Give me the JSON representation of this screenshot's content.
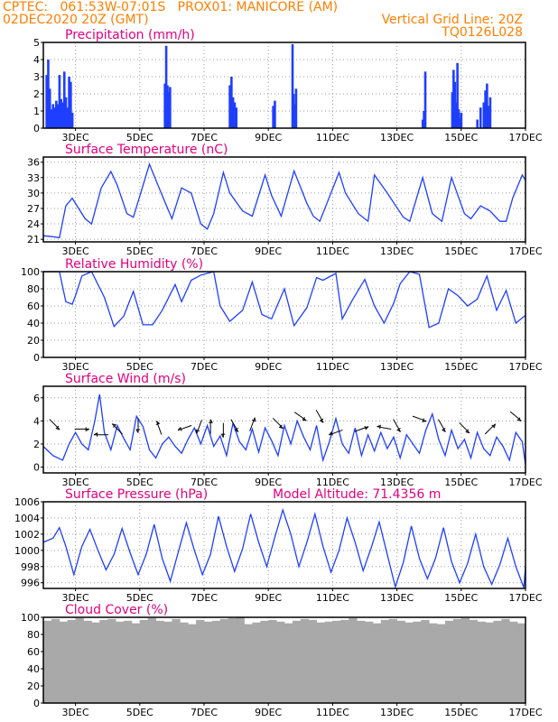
{
  "header": {
    "line1_left": "CPTEC:   061:53W-07:01S   PROX01: MANICORE (AM)",
    "line2_left": "02DEC2020 20Z (GMT)",
    "line2_right": "Vertical Grid Line: 20Z",
    "line3_right": "TQ0126L028"
  },
  "colors": {
    "header": "#ff7f00",
    "titles": "#e0007f",
    "series": "#1f3fff",
    "cloud": "#a9a9a9",
    "grid": "#9a9a9a",
    "arrows": "#000000"
  },
  "x_tick_labels": [
    "3DEC",
    "5DEC",
    "7DEC",
    "9DEC",
    "11DEC",
    "13DEC",
    "15DEC",
    "17DEC"
  ],
  "chart_data": [
    {
      "type": "bar",
      "title": "Precipitation (mm/h)",
      "ylim": [
        0,
        5
      ],
      "yticks": [
        0,
        1,
        2,
        3,
        4,
        5
      ],
      "xlim_days": [
        2.0,
        17.0
      ],
      "x": [
        2.1,
        2.15,
        2.2,
        2.25,
        2.3,
        2.35,
        2.4,
        2.45,
        2.5,
        2.55,
        2.6,
        2.65,
        2.7,
        2.75,
        2.8,
        2.85,
        2.9,
        5.78,
        5.82,
        5.86,
        5.9,
        5.94,
        7.8,
        7.85,
        7.9,
        7.95,
        8.0,
        9.15,
        9.2,
        9.75,
        9.78,
        9.82,
        9.86,
        13.8,
        13.84,
        13.88,
        14.72,
        14.76,
        14.8,
        14.84,
        14.88,
        14.92,
        14.96,
        15.0,
        15.5,
        15.6,
        15.7,
        15.75,
        15.8,
        15.85,
        15.9
      ],
      "values": [
        3.1,
        4.0,
        2.3,
        1.1,
        1.4,
        1.2,
        1.6,
        1.4,
        3.1,
        1.7,
        1.5,
        3.3,
        1.8,
        1.2,
        3.0,
        2.7,
        0.9,
        2.6,
        4.8,
        2.5,
        2.1,
        2.4,
        2.5,
        3.0,
        1.8,
        1.5,
        1.2,
        1.3,
        1.6,
        4.9,
        2.0,
        1.4,
        2.3,
        0.5,
        1.0,
        3.3,
        2.1,
        3.4,
        2.7,
        1.5,
        3.8,
        1.1,
        0.6,
        0.9,
        0.5,
        1.2,
        1.5,
        2.2,
        2.6,
        1.3,
        1.8
      ]
    },
    {
      "type": "line",
      "title": "Surface Temperature (nC)",
      "ylim": [
        20.5,
        37
      ],
      "yticks": [
        21,
        24,
        27,
        30,
        33,
        36
      ],
      "x": [
        2.0,
        2.3,
        2.5,
        2.7,
        2.9,
        3.3,
        3.5,
        3.8,
        4.1,
        4.3,
        4.6,
        4.8,
        5.3,
        5.6,
        6.0,
        6.3,
        6.6,
        6.9,
        7.1,
        7.3,
        7.6,
        7.8,
        8.2,
        8.5,
        8.9,
        9.1,
        9.4,
        9.8,
        10.2,
        10.4,
        10.6,
        11.2,
        11.4,
        11.8,
        12.1,
        12.3,
        12.7,
        13.2,
        13.4,
        13.8,
        14.1,
        14.4,
        14.7,
        15.1,
        15.3,
        15.6,
        15.9,
        16.2,
        16.4,
        16.6,
        16.9,
        17.0
      ],
      "values": [
        21.7,
        21.5,
        21.3,
        27.5,
        29.0,
        25.0,
        24.0,
        31.0,
        34.2,
        31.5,
        26.0,
        25.3,
        35.6,
        31.0,
        25.0,
        31.0,
        30.0,
        24.0,
        23.0,
        26.0,
        34.0,
        30.0,
        26.5,
        25.5,
        33.5,
        29.5,
        25.5,
        34.3,
        28.0,
        25.5,
        24.5,
        34.0,
        30.0,
        26.0,
        24.5,
        33.5,
        30.0,
        25.3,
        24.5,
        33.0,
        26.0,
        24.5,
        33.0,
        26.0,
        25.0,
        27.5,
        26.5,
        24.5,
        24.5,
        29.0,
        33.5,
        32.5
      ]
    },
    {
      "type": "line",
      "title": "Relative Humidity (%)",
      "ylim": [
        0,
        100
      ],
      "yticks": [
        0,
        20,
        40,
        60,
        80,
        100
      ],
      "x": [
        2.0,
        2.5,
        2.7,
        2.9,
        3.0,
        3.2,
        3.5,
        3.9,
        4.2,
        4.5,
        4.8,
        5.1,
        5.4,
        5.7,
        6.1,
        6.3,
        6.6,
        6.9,
        7.3,
        7.5,
        7.8,
        8.2,
        8.5,
        8.8,
        9.1,
        9.5,
        9.8,
        10.2,
        10.5,
        10.7,
        11.1,
        11.3,
        11.6,
        12.0,
        12.3,
        12.6,
        12.9,
        13.1,
        13.4,
        13.7,
        14.0,
        14.3,
        14.6,
        14.9,
        15.2,
        15.5,
        15.8,
        16.1,
        16.4,
        16.7,
        17.0
      ],
      "values": [
        100,
        100,
        65,
        62,
        72,
        95,
        100,
        70,
        36,
        48,
        77,
        38,
        38,
        55,
        85,
        65,
        90,
        96,
        100,
        60,
        42,
        55,
        88,
        50,
        45,
        80,
        37,
        58,
        93,
        90,
        98,
        45,
        66,
        91,
        60,
        40,
        63,
        86,
        100,
        97,
        35,
        40,
        80,
        72,
        60,
        68,
        95,
        55,
        78,
        40,
        49
      ]
    },
    {
      "type": "line",
      "title": "Surface Wind (m/s)",
      "ylim": [
        -0.5,
        7
      ],
      "yticks": [
        0,
        2,
        4,
        6
      ],
      "x": [
        2.0,
        2.3,
        2.6,
        2.8,
        3.0,
        3.2,
        3.4,
        3.6,
        3.75,
        3.9,
        4.1,
        4.3,
        4.5,
        4.7,
        4.9,
        5.1,
        5.3,
        5.5,
        5.7,
        5.9,
        6.1,
        6.3,
        6.5,
        6.7,
        6.9,
        7.1,
        7.3,
        7.5,
        7.7,
        7.9,
        8.1,
        8.3,
        8.5,
        8.7,
        8.9,
        9.1,
        9.3,
        9.5,
        9.7,
        9.9,
        10.1,
        10.3,
        10.5,
        10.7,
        10.9,
        11.1,
        11.3,
        11.5,
        11.7,
        11.9,
        12.1,
        12.3,
        12.5,
        12.7,
        12.9,
        13.1,
        13.3,
        13.5,
        13.7,
        13.9,
        14.1,
        14.3,
        14.5,
        14.7,
        14.9,
        15.1,
        15.3,
        15.5,
        15.7,
        15.9,
        16.1,
        16.3,
        16.5,
        16.7,
        16.9,
        17.0
      ],
      "values": [
        1.8,
        1.0,
        0.6,
        2.0,
        3.0,
        2.0,
        1.5,
        4.0,
        6.3,
        3.0,
        1.5,
        3.6,
        2.5,
        1.5,
        4.4,
        3.5,
        1.5,
        0.8,
        2.0,
        2.6,
        1.8,
        1.2,
        2.4,
        3.4,
        2.0,
        3.6,
        1.8,
        2.7,
        1.0,
        3.8,
        2.2,
        1.5,
        3.3,
        1.3,
        3.4,
        2.3,
        1.0,
        3.6,
        2.0,
        4.0,
        2.6,
        1.5,
        3.6,
        0.6,
        2.2,
        4.2,
        2.0,
        1.2,
        3.4,
        1.0,
        2.8,
        1.4,
        3.0,
        1.6,
        2.6,
        0.8,
        2.8,
        2.0,
        1.2,
        3.2,
        4.6,
        2.4,
        1.0,
        3.2,
        1.6,
        2.4,
        0.8,
        3.0,
        1.6,
        1.0,
        2.6,
        1.8,
        0.6,
        3.0,
        2.2,
        0.2
      ],
      "arrows": [
        {
          "x": 2.35,
          "y": 3.7,
          "dir_deg": 315
        },
        {
          "x": 3.2,
          "y": 3.3,
          "dir_deg": 0
        },
        {
          "x": 3.8,
          "y": 2.8,
          "dir_deg": 180
        },
        {
          "x": 4.3,
          "y": 3.3,
          "dir_deg": 135
        },
        {
          "x": 4.95,
          "y": 3.6,
          "dir_deg": 270
        },
        {
          "x": 5.6,
          "y": 3.4,
          "dir_deg": 110
        },
        {
          "x": 6.4,
          "y": 3.4,
          "dir_deg": 200
        },
        {
          "x": 6.85,
          "y": 3.5,
          "dir_deg": 250
        },
        {
          "x": 7.2,
          "y": 3.5,
          "dir_deg": 90
        },
        {
          "x": 7.6,
          "y": 3.2,
          "dir_deg": 270
        },
        {
          "x": 7.95,
          "y": 3.6,
          "dir_deg": 300
        },
        {
          "x": 8.5,
          "y": 3.7,
          "dir_deg": 70
        },
        {
          "x": 9.3,
          "y": 3.8,
          "dir_deg": 315
        },
        {
          "x": 10.0,
          "y": 4.4,
          "dir_deg": 325
        },
        {
          "x": 10.6,
          "y": 4.4,
          "dir_deg": 300
        },
        {
          "x": 11.1,
          "y": 3.0,
          "dir_deg": 200
        },
        {
          "x": 11.9,
          "y": 3.3,
          "dir_deg": 20
        },
        {
          "x": 12.6,
          "y": 3.4,
          "dir_deg": 170
        },
        {
          "x": 13.0,
          "y": 3.6,
          "dir_deg": 300
        },
        {
          "x": 13.7,
          "y": 4.2,
          "dir_deg": 340
        },
        {
          "x": 14.4,
          "y": 3.6,
          "dir_deg": 300
        },
        {
          "x": 15.1,
          "y": 3.4,
          "dir_deg": 315
        },
        {
          "x": 15.9,
          "y": 3.3,
          "dir_deg": 45
        },
        {
          "x": 16.7,
          "y": 4.4,
          "dir_deg": 320
        }
      ]
    },
    {
      "type": "line",
      "title": "Surface Pressure (hPa)",
      "annotation": "Model Altitude: 71.4356 m",
      "ylim": [
        995.3,
        1006
      ],
      "yticks": [
        996,
        998,
        1000,
        1002,
        1004,
        1006
      ],
      "x": [
        2.0,
        2.3,
        2.5,
        2.7,
        2.95,
        3.2,
        3.45,
        3.7,
        3.95,
        4.2,
        4.45,
        4.7,
        4.95,
        5.2,
        5.45,
        5.7,
        5.95,
        6.2,
        6.45,
        6.7,
        6.95,
        7.2,
        7.45,
        7.7,
        7.95,
        8.2,
        8.45,
        8.7,
        8.95,
        9.2,
        9.45,
        9.7,
        9.95,
        10.2,
        10.45,
        10.7,
        10.95,
        11.2,
        11.45,
        11.7,
        11.95,
        12.2,
        12.45,
        12.7,
        12.95,
        13.2,
        13.45,
        13.7,
        13.95,
        14.2,
        14.45,
        14.7,
        14.95,
        15.2,
        15.45,
        15.7,
        15.95,
        16.2,
        16.45,
        16.7,
        16.95,
        17.0
      ],
      "values": [
        1001.0,
        1001.5,
        1002.8,
        1000.5,
        997.0,
        1000.5,
        1002.6,
        1000.0,
        997.6,
        999.5,
        1002.7,
        999.7,
        997.0,
        999.5,
        1003.2,
        999.0,
        996.2,
        999.8,
        1003.4,
        1000.0,
        997.0,
        999.5,
        1004.2,
        1000.5,
        997.4,
        1000.2,
        1004.5,
        1001.0,
        998.0,
        1001.6,
        1005.0,
        1002.0,
        998.0,
        1001.0,
        1004.5,
        1000.5,
        997.3,
        1000.0,
        1004.0,
        1001.0,
        997.5,
        1000.3,
        1003.5,
        999.5,
        995.5,
        998.5,
        1003.0,
        999.0,
        996.5,
        999.0,
        1002.8,
        998.6,
        996.0,
        998.4,
        1002.0,
        998.0,
        995.8,
        998.2,
        1001.5,
        998.0,
        995.4,
        998.0
      ]
    },
    {
      "type": "bar",
      "title": "Cloud Cover (%)",
      "ylim": [
        0,
        100
      ],
      "yticks": [
        0,
        20,
        40,
        60,
        80,
        100
      ],
      "x_start": 2.0,
      "x_step": 0.25,
      "values": [
        96,
        98,
        95,
        97,
        99,
        96,
        94,
        97,
        98,
        95,
        96,
        93,
        97,
        99,
        96,
        95,
        98,
        94,
        92,
        97,
        95,
        96,
        98,
        99,
        100,
        92,
        94,
        96,
        97,
        95,
        93,
        96,
        98,
        97,
        94,
        95,
        96,
        97,
        99,
        96,
        95,
        93,
        97,
        98,
        96,
        94,
        95,
        97,
        93,
        92,
        96,
        98,
        99,
        97,
        95,
        94,
        96,
        98,
        95,
        93
      ]
    }
  ]
}
